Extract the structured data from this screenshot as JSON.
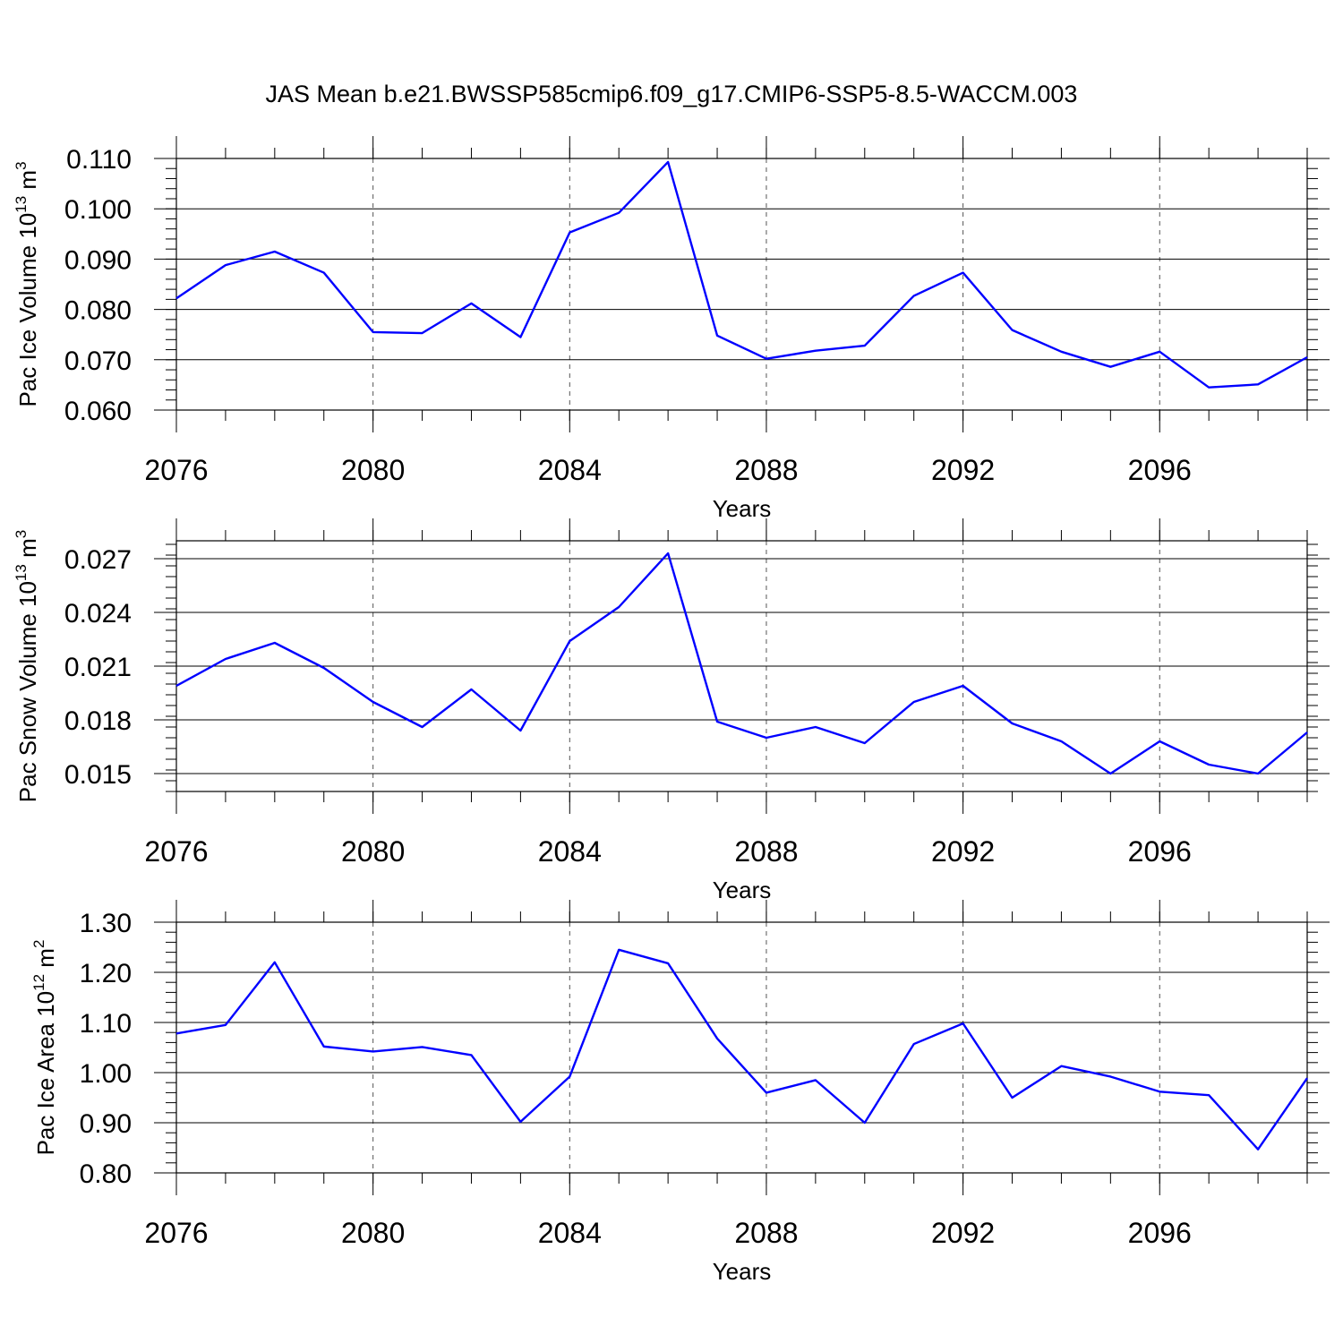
{
  "title": "JAS Mean b.e21.BWSSP585cmip6.f09_g17.CMIP6-SSP5-8.5-WACCM.003",
  "line_color": "#0000ff",
  "chart_data": [
    {
      "type": "line",
      "xlabel": "Years",
      "ylabel_text": "Pac Ice Volume 10",
      "ylabel_exp": "13",
      "ylabel_unit": " m",
      "ylabel_unit_exp": "3",
      "xlim": [
        2076,
        2099
      ],
      "ylim": [
        0.06,
        0.11
      ],
      "x_ticks": [
        "2076",
        "2080",
        "2084",
        "2088",
        "2092",
        "2096"
      ],
      "y_ticks": [
        "0.060",
        "0.070",
        "0.080",
        "0.090",
        "0.100",
        "0.110"
      ],
      "y_tick_values": [
        0.06,
        0.07,
        0.08,
        0.09,
        0.1,
        0.11
      ],
      "x": [
        2076,
        2077,
        2078,
        2079,
        2080,
        2081,
        2082,
        2083,
        2084,
        2085,
        2086,
        2087,
        2088,
        2089,
        2090,
        2091,
        2092,
        2093,
        2094,
        2095,
        2096,
        2097,
        2098,
        2099
      ],
      "values": [
        0.0822,
        0.0888,
        0.0915,
        0.0873,
        0.0755,
        0.0753,
        0.0812,
        0.0745,
        0.0953,
        0.0992,
        0.1093,
        0.0748,
        0.0702,
        0.0718,
        0.0728,
        0.0827,
        0.0873,
        0.0759,
        0.0716,
        0.0686,
        0.0716,
        0.0645,
        0.0651,
        0.0705
      ]
    },
    {
      "type": "line",
      "xlabel": "Years",
      "ylabel_text": "Pac Snow Volume 10",
      "ylabel_exp": "13",
      "ylabel_unit": " m",
      "ylabel_unit_exp": "3",
      "xlim": [
        2076,
        2099
      ],
      "ylim": [
        0.014,
        0.028
      ],
      "x_ticks": [
        "2076",
        "2080",
        "2084",
        "2088",
        "2092",
        "2096"
      ],
      "y_ticks": [
        "0.015",
        "0.018",
        "0.021",
        "0.024",
        "0.027"
      ],
      "y_tick_values": [
        0.015,
        0.018,
        0.021,
        0.024,
        0.027
      ],
      "x": [
        2076,
        2077,
        2078,
        2079,
        2080,
        2081,
        2082,
        2083,
        2084,
        2085,
        2086,
        2087,
        2088,
        2089,
        2090,
        2091,
        2092,
        2093,
        2094,
        2095,
        2096,
        2097,
        2098,
        2099
      ],
      "values": [
        0.0199,
        0.0214,
        0.0223,
        0.0209,
        0.019,
        0.0176,
        0.0197,
        0.0174,
        0.0224,
        0.0243,
        0.0273,
        0.0179,
        0.017,
        0.0176,
        0.0167,
        0.019,
        0.0199,
        0.0178,
        0.0168,
        0.015,
        0.0168,
        0.0155,
        0.015,
        0.0173
      ]
    },
    {
      "type": "line",
      "xlabel": "Years",
      "ylabel_text": "Pac Ice Area 10",
      "ylabel_exp": "12",
      "ylabel_unit": " m",
      "ylabel_unit_exp": "2",
      "xlim": [
        2076,
        2099
      ],
      "ylim": [
        0.8,
        1.3
      ],
      "x_ticks": [
        "2076",
        "2080",
        "2084",
        "2088",
        "2092",
        "2096"
      ],
      "y_ticks": [
        "0.80",
        "0.90",
        "1.00",
        "1.10",
        "1.20",
        "1.30"
      ],
      "y_tick_values": [
        0.8,
        0.9,
        1.0,
        1.1,
        1.2,
        1.3
      ],
      "x": [
        2076,
        2077,
        2078,
        2079,
        2080,
        2081,
        2082,
        2083,
        2084,
        2085,
        2086,
        2087,
        2088,
        2089,
        2090,
        2091,
        2092,
        2093,
        2094,
        2095,
        2096,
        2097,
        2098,
        2099
      ],
      "values": [
        1.078,
        1.095,
        1.22,
        1.052,
        1.042,
        1.051,
        1.035,
        0.902,
        0.992,
        1.245,
        1.218,
        1.068,
        0.96,
        0.985,
        0.9,
        1.057,
        1.098,
        0.95,
        1.013,
        0.992,
        0.962,
        0.955,
        0.847,
        0.989
      ]
    }
  ]
}
